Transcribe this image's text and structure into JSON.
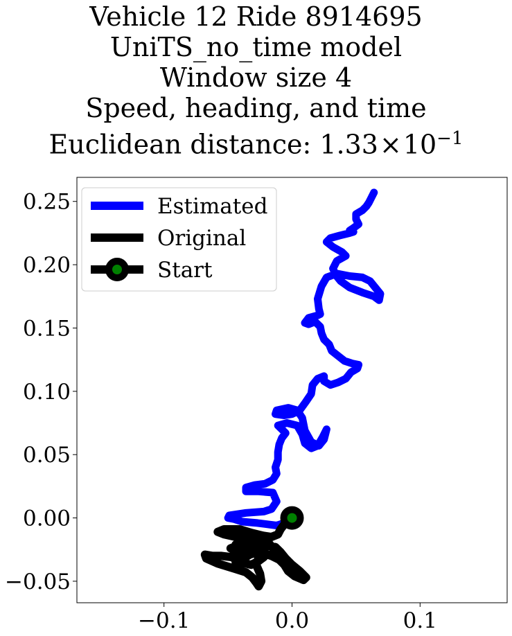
{
  "chart_data": {
    "type": "line",
    "title_lines": [
      "Vehicle 12 Ride 8914695",
      "UniTS_no_time model",
      "Window size 4",
      "Speed, heading, and time"
    ],
    "title_distance_prefix": "Euclidean distance: ",
    "title_distance_value": "1.33",
    "title_distance_times": "×",
    "title_distance_base": "10",
    "title_distance_exp": "−1",
    "xlim": [
      -0.168,
      0.168
    ],
    "ylim": [
      -0.067,
      0.269
    ],
    "x_ticks": [
      {
        "value": -0.1,
        "label": "−0.1"
      },
      {
        "value": 0.0,
        "label": "0.0"
      },
      {
        "value": 0.1,
        "label": "0.1"
      }
    ],
    "y_ticks": [
      {
        "value": -0.05,
        "label": "−0.05"
      },
      {
        "value": 0.0,
        "label": "0.00"
      },
      {
        "value": 0.05,
        "label": "0.05"
      },
      {
        "value": 0.1,
        "label": "0.10"
      },
      {
        "value": 0.15,
        "label": "0.15"
      },
      {
        "value": 0.2,
        "label": "0.20"
      },
      {
        "value": 0.25,
        "label": "0.25"
      }
    ],
    "grid": false,
    "legend_position": "upper-left",
    "series": [
      {
        "name": "Estimated",
        "color": "#0000ff",
        "points": [
          [
            0.0,
            -0.002
          ],
          [
            -0.012,
            -0.006
          ],
          [
            -0.027,
            -0.004
          ],
          [
            -0.039,
            -0.003
          ],
          [
            -0.045,
            -0.001
          ],
          [
            -0.05,
            0.0
          ],
          [
            -0.049,
            0.002
          ],
          [
            -0.036,
            0.004
          ],
          [
            -0.022,
            0.005
          ],
          [
            -0.016,
            0.007
          ],
          [
            -0.012,
            0.013
          ],
          [
            -0.015,
            0.02
          ],
          [
            -0.027,
            0.021
          ],
          [
            -0.036,
            0.021
          ],
          [
            -0.036,
            0.024
          ],
          [
            -0.029,
            0.026
          ],
          [
            -0.021,
            0.027
          ],
          [
            -0.015,
            0.03
          ],
          [
            -0.012,
            0.035
          ],
          [
            -0.013,
            0.04
          ],
          [
            -0.011,
            0.046
          ],
          [
            -0.011,
            0.052
          ],
          [
            -0.01,
            0.058
          ],
          [
            -0.008,
            0.063
          ],
          [
            -0.005,
            0.067
          ],
          [
            -0.008,
            0.07
          ],
          [
            -0.011,
            0.073
          ],
          [
            -0.004,
            0.075
          ],
          [
            0.004,
            0.073
          ],
          [
            0.008,
            0.066
          ],
          [
            0.01,
            0.059
          ],
          [
            0.015,
            0.055
          ],
          [
            0.02,
            0.057
          ],
          [
            0.024,
            0.064
          ],
          [
            0.027,
            0.07
          ],
          [
            0.025,
            0.062
          ],
          [
            0.021,
            0.057
          ],
          [
            0.015,
            0.06
          ],
          [
            0.01,
            0.069
          ],
          [
            0.008,
            0.079
          ],
          [
            0.004,
            0.085
          ],
          [
            -0.003,
            0.087
          ],
          [
            -0.012,
            0.085
          ],
          [
            -0.013,
            0.082
          ],
          [
            -0.006,
            0.081
          ],
          [
            0.0,
            0.082
          ],
          [
            0.006,
            0.085
          ],
          [
            0.011,
            0.092
          ],
          [
            0.015,
            0.098
          ],
          [
            0.016,
            0.105
          ],
          [
            0.02,
            0.11
          ],
          [
            0.025,
            0.112
          ],
          [
            0.025,
            0.108
          ],
          [
            0.03,
            0.105
          ],
          [
            0.036,
            0.107
          ],
          [
            0.042,
            0.11
          ],
          [
            0.046,
            0.115
          ],
          [
            0.051,
            0.118
          ],
          [
            0.052,
            0.121
          ],
          [
            0.047,
            0.122
          ],
          [
            0.041,
            0.124
          ],
          [
            0.036,
            0.128
          ],
          [
            0.031,
            0.132
          ],
          [
            0.029,
            0.137
          ],
          [
            0.025,
            0.141
          ],
          [
            0.023,
            0.146
          ],
          [
            0.022,
            0.151
          ],
          [
            0.018,
            0.155
          ],
          [
            0.013,
            0.153
          ],
          [
            0.01,
            0.154
          ],
          [
            0.013,
            0.158
          ],
          [
            0.02,
            0.16
          ],
          [
            0.022,
            0.161
          ],
          [
            0.021,
            0.165
          ],
          [
            0.02,
            0.173
          ],
          [
            0.023,
            0.183
          ],
          [
            0.027,
            0.19
          ],
          [
            0.035,
            0.193
          ],
          [
            0.045,
            0.191
          ],
          [
            0.055,
            0.19
          ],
          [
            0.061,
            0.187
          ],
          [
            0.065,
            0.182
          ],
          [
            0.069,
            0.177
          ],
          [
            0.068,
            0.172
          ],
          [
            0.064,
            0.175
          ],
          [
            0.055,
            0.178
          ],
          [
            0.045,
            0.182
          ],
          [
            0.038,
            0.187
          ],
          [
            0.034,
            0.192
          ],
          [
            0.032,
            0.197
          ],
          [
            0.035,
            0.203
          ],
          [
            0.042,
            0.207
          ],
          [
            0.039,
            0.21
          ],
          [
            0.032,
            0.214
          ],
          [
            0.027,
            0.218
          ],
          [
            0.03,
            0.221
          ],
          [
            0.037,
            0.223
          ],
          [
            0.045,
            0.225
          ],
          [
            0.048,
            0.226
          ],
          [
            0.045,
            0.227
          ],
          [
            0.048,
            0.229
          ],
          [
            0.052,
            0.232
          ],
          [
            0.05,
            0.236
          ],
          [
            0.05,
            0.24
          ],
          [
            0.055,
            0.243
          ],
          [
            0.058,
            0.246
          ],
          [
            0.06,
            0.249
          ],
          [
            0.062,
            0.253
          ],
          [
            0.064,
            0.257
          ]
        ]
      },
      {
        "name": "Original",
        "color": "#000000",
        "points": [
          [
            0.0,
            -0.001
          ],
          [
            -0.006,
            -0.005
          ],
          [
            -0.009,
            -0.009
          ],
          [
            -0.011,
            -0.013
          ],
          [
            -0.016,
            -0.015
          ],
          [
            -0.023,
            -0.014
          ],
          [
            -0.031,
            -0.012
          ],
          [
            -0.041,
            -0.009
          ],
          [
            -0.053,
            -0.009
          ],
          [
            -0.058,
            -0.011
          ],
          [
            -0.053,
            -0.013
          ],
          [
            -0.044,
            -0.015
          ],
          [
            -0.034,
            -0.017
          ],
          [
            -0.025,
            -0.018
          ],
          [
            -0.018,
            -0.02
          ],
          [
            -0.014,
            -0.025
          ],
          [
            -0.013,
            -0.03
          ],
          [
            -0.019,
            -0.029
          ],
          [
            -0.03,
            -0.026
          ],
          [
            -0.04,
            -0.024
          ],
          [
            -0.044,
            -0.021
          ],
          [
            -0.038,
            -0.019
          ],
          [
            -0.03,
            -0.022
          ],
          [
            -0.025,
            -0.025
          ],
          [
            -0.022,
            -0.031
          ],
          [
            -0.026,
            -0.034
          ],
          [
            -0.032,
            -0.037
          ],
          [
            -0.04,
            -0.035
          ],
          [
            -0.047,
            -0.031
          ],
          [
            -0.055,
            -0.03
          ],
          [
            -0.062,
            -0.03
          ],
          [
            -0.068,
            -0.029
          ],
          [
            -0.067,
            -0.032
          ],
          [
            -0.058,
            -0.036
          ],
          [
            -0.045,
            -0.04
          ],
          [
            -0.036,
            -0.043
          ],
          [
            -0.031,
            -0.047
          ],
          [
            -0.028,
            -0.051
          ],
          [
            -0.026,
            -0.054
          ],
          [
            -0.024,
            -0.05
          ],
          [
            -0.025,
            -0.044
          ],
          [
            -0.028,
            -0.037
          ],
          [
            -0.026,
            -0.031
          ],
          [
            -0.022,
            -0.028
          ],
          [
            -0.016,
            -0.03
          ],
          [
            -0.01,
            -0.033
          ],
          [
            -0.006,
            -0.037
          ],
          [
            -0.003,
            -0.042
          ],
          [
            0.002,
            -0.046
          ],
          [
            0.009,
            -0.049
          ],
          [
            0.011,
            -0.047
          ],
          [
            0.006,
            -0.042
          ],
          [
            0.0,
            -0.037
          ],
          [
            -0.005,
            -0.032
          ],
          [
            -0.009,
            -0.027
          ],
          [
            -0.013,
            -0.023
          ],
          [
            -0.018,
            -0.022
          ],
          [
            -0.024,
            -0.024
          ],
          [
            -0.03,
            -0.028
          ],
          [
            -0.036,
            -0.03
          ],
          [
            -0.043,
            -0.027
          ],
          [
            -0.048,
            -0.024
          ],
          [
            -0.043,
            -0.022
          ],
          [
            -0.035,
            -0.024
          ],
          [
            -0.033,
            -0.029
          ],
          [
            -0.038,
            -0.032
          ],
          [
            -0.044,
            -0.035
          ]
        ]
      },
      {
        "name": "Start",
        "color": "#000000",
        "marker_face": "#008000",
        "points": [
          [
            0.0,
            0.0
          ]
        ]
      }
    ]
  }
}
